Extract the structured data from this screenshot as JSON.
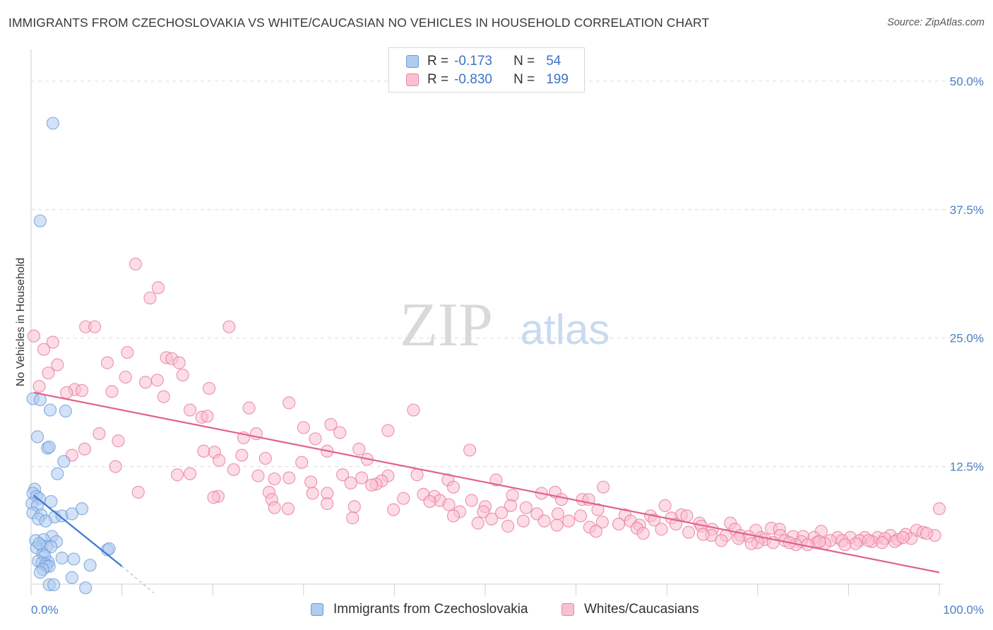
{
  "title": "IMMIGRANTS FROM CZECHOSLOVAKIA VS WHITE/CAUCASIAN NO VEHICLES IN HOUSEHOLD CORRELATION CHART",
  "source": "Source: ZipAtlas.com",
  "watermark": {
    "zip": "ZIP",
    "atlas": "atlas"
  },
  "legend": {
    "rows": [
      {
        "r_label": "R =",
        "r_value": "-0.173",
        "n_label": "N =",
        "n_value": "54",
        "color": "#aecbf0",
        "border": "#6a9bd8"
      },
      {
        "r_label": "R =",
        "r_value": "-0.830",
        "n_label": "N =",
        "n_value": "199",
        "color": "#f9c0d0",
        "border": "#e88aa6"
      }
    ]
  },
  "bottom_legend": {
    "series1": "Immigrants from Czechoslovakia",
    "series2": "Whites/Caucasians"
  },
  "chart_data": {
    "type": "scatter",
    "title": "IMMIGRANTS FROM CZECHOSLOVAKIA VS WHITE/CAUCASIAN NO VEHICLES IN HOUSEHOLD CORRELATION CHART",
    "xlabel": "",
    "ylabel": "No Vehicles in Household",
    "xlim": [
      0,
      100
    ],
    "ylim": [
      0,
      52.5
    ],
    "x_tick_labels": [
      "0.0%",
      "100.0%"
    ],
    "y_ticks": [
      12.5,
      25.0,
      37.5,
      50.0
    ],
    "y_tick_labels": [
      "12.5%",
      "25.0%",
      "37.5%",
      "50.0%"
    ],
    "grid": "horizontal dashed",
    "legend_position": "top-center",
    "series": [
      {
        "name": "Immigrants from Czechoslovakia",
        "color": "#6a9bd8",
        "fill": "#aecbf0",
        "trend": {
          "x": [
            0.3,
            10.0
          ],
          "y": [
            9.7,
            2.8
          ],
          "dashed_to": [
            13.5,
            0.2
          ]
        },
        "points": [
          [
            2.4,
            45.9
          ],
          [
            1.0,
            36.4
          ],
          [
            0.2,
            19.1
          ],
          [
            1.0,
            19.0
          ],
          [
            2.1,
            18.0
          ],
          [
            3.8,
            17.9
          ],
          [
            0.7,
            15.4
          ],
          [
            1.8,
            14.3
          ],
          [
            2.0,
            14.4
          ],
          [
            3.6,
            13.0
          ],
          [
            2.9,
            11.8
          ],
          [
            0.4,
            10.3
          ],
          [
            0.2,
            9.9
          ],
          [
            0.6,
            9.6
          ],
          [
            0.9,
            9.4
          ],
          [
            2.2,
            9.1
          ],
          [
            0.1,
            8.9
          ],
          [
            0.7,
            8.7
          ],
          [
            5.6,
            8.4
          ],
          [
            0.2,
            8.0
          ],
          [
            1.1,
            7.8
          ],
          [
            2.6,
            7.6
          ],
          [
            3.4,
            7.7
          ],
          [
            4.5,
            7.9
          ],
          [
            0.8,
            7.4
          ],
          [
            1.6,
            7.2
          ],
          [
            2.3,
            5.7
          ],
          [
            0.5,
            5.3
          ],
          [
            1.4,
            5.4
          ],
          [
            2.8,
            5.2
          ],
          [
            1.2,
            4.8
          ],
          [
            1.7,
            4.7
          ],
          [
            2.2,
            4.7
          ],
          [
            0.6,
            4.6
          ],
          [
            8.4,
            4.4
          ],
          [
            8.6,
            4.5
          ],
          [
            1.3,
            4.0
          ],
          [
            1.5,
            3.8
          ],
          [
            3.4,
            3.6
          ],
          [
            4.7,
            3.5
          ],
          [
            0.8,
            3.3
          ],
          [
            1.9,
            3.2
          ],
          [
            1.2,
            3.1
          ],
          [
            1.6,
            3.0
          ],
          [
            6.5,
            2.9
          ],
          [
            1.7,
            2.8
          ],
          [
            2.0,
            2.8
          ],
          [
            1.3,
            2.5
          ],
          [
            1.0,
            2.2
          ],
          [
            4.5,
            1.7
          ],
          [
            2.0,
            1.0
          ],
          [
            2.5,
            1.0
          ],
          [
            6.0,
            0.7
          ],
          [
            0.9,
            5.0
          ]
        ]
      },
      {
        "name": "Whites/Caucasians",
        "color": "#e8789a",
        "fill": "#f9c0d0",
        "trend": {
          "x": [
            0.3,
            100.0
          ],
          "y": [
            19.7,
            2.2
          ]
        },
        "points": [
          [
            11.5,
            32.2
          ],
          [
            14.0,
            29.9
          ],
          [
            13.1,
            28.9
          ],
          [
            21.8,
            26.1
          ],
          [
            6.0,
            26.1
          ],
          [
            7.0,
            26.1
          ],
          [
            0.3,
            25.2
          ],
          [
            2.4,
            24.6
          ],
          [
            1.4,
            23.9
          ],
          [
            10.6,
            23.6
          ],
          [
            14.9,
            23.1
          ],
          [
            15.5,
            23.0
          ],
          [
            16.3,
            22.6
          ],
          [
            2.9,
            22.4
          ],
          [
            8.4,
            22.6
          ],
          [
            1.9,
            21.6
          ],
          [
            10.4,
            21.2
          ],
          [
            16.7,
            21.4
          ],
          [
            12.6,
            20.7
          ],
          [
            13.9,
            20.9
          ],
          [
            19.6,
            20.1
          ],
          [
            0.9,
            20.3
          ],
          [
            4.8,
            20.0
          ],
          [
            3.9,
            19.7
          ],
          [
            5.6,
            19.9
          ],
          [
            8.9,
            19.8
          ],
          [
            14.6,
            19.3
          ],
          [
            28.4,
            18.7
          ],
          [
            17.5,
            18.0
          ],
          [
            24.0,
            18.2
          ],
          [
            42.1,
            18.0
          ],
          [
            18.8,
            17.3
          ],
          [
            19.4,
            17.4
          ],
          [
            33.0,
            16.6
          ],
          [
            30.0,
            16.3
          ],
          [
            39.3,
            16.0
          ],
          [
            34.0,
            15.8
          ],
          [
            7.5,
            15.7
          ],
          [
            24.8,
            15.7
          ],
          [
            23.4,
            15.3
          ],
          [
            31.3,
            15.2
          ],
          [
            9.6,
            15.0
          ],
          [
            5.9,
            14.2
          ],
          [
            19.0,
            14.0
          ],
          [
            20.2,
            13.9
          ],
          [
            36.1,
            14.2
          ],
          [
            48.3,
            14.1
          ],
          [
            32.6,
            14.0
          ],
          [
            4.5,
            13.6
          ],
          [
            23.2,
            13.6
          ],
          [
            25.8,
            13.3
          ],
          [
            20.7,
            13.1
          ],
          [
            29.8,
            12.9
          ],
          [
            37.0,
            13.2
          ],
          [
            9.3,
            12.5
          ],
          [
            22.3,
            12.2
          ],
          [
            16.1,
            11.7
          ],
          [
            17.5,
            11.8
          ],
          [
            25.0,
            11.6
          ],
          [
            34.3,
            11.7
          ],
          [
            39.3,
            11.6
          ],
          [
            42.5,
            11.7
          ],
          [
            26.8,
            11.3
          ],
          [
            28.4,
            11.4
          ],
          [
            30.8,
            11.0
          ],
          [
            36.4,
            11.4
          ],
          [
            38.6,
            11.1
          ],
          [
            45.9,
            11.2
          ],
          [
            51.2,
            11.2
          ],
          [
            35.2,
            10.9
          ],
          [
            38.0,
            10.8
          ],
          [
            46.5,
            10.5
          ],
          [
            37.5,
            10.7
          ],
          [
            63.0,
            10.5
          ],
          [
            57.7,
            10.0
          ],
          [
            26.2,
            10.0
          ],
          [
            31.0,
            9.9
          ],
          [
            32.6,
            9.9
          ],
          [
            11.8,
            10.0
          ],
          [
            43.2,
            9.8
          ],
          [
            44.4,
            9.6
          ],
          [
            53.0,
            9.7
          ],
          [
            56.2,
            9.9
          ],
          [
            20.6,
            9.6
          ],
          [
            26.5,
            9.3
          ],
          [
            41.0,
            9.4
          ],
          [
            45.0,
            9.2
          ],
          [
            48.5,
            9.2
          ],
          [
            58.4,
            9.3
          ],
          [
            60.7,
            9.3
          ],
          [
            61.4,
            9.3
          ],
          [
            20.1,
            9.5
          ],
          [
            43.9,
            9.1
          ],
          [
            26.8,
            8.5
          ],
          [
            32.6,
            8.9
          ],
          [
            35.6,
            8.6
          ],
          [
            39.9,
            8.3
          ],
          [
            46.0,
            8.8
          ],
          [
            50.0,
            8.6
          ],
          [
            52.8,
            8.7
          ],
          [
            54.5,
            8.5
          ],
          [
            62.4,
            8.3
          ],
          [
            69.8,
            8.7
          ],
          [
            100.0,
            8.4
          ],
          [
            28.3,
            8.4
          ],
          [
            47.2,
            8.1
          ],
          [
            49.8,
            8.1
          ],
          [
            51.8,
            8.0
          ],
          [
            55.7,
            7.9
          ],
          [
            58.0,
            7.9
          ],
          [
            60.5,
            7.7
          ],
          [
            65.4,
            7.8
          ],
          [
            68.2,
            7.7
          ],
          [
            71.6,
            7.8
          ],
          [
            72.2,
            7.7
          ],
          [
            70.5,
            7.5
          ],
          [
            35.4,
            7.5
          ],
          [
            46.5,
            7.7
          ],
          [
            50.7,
            7.4
          ],
          [
            54.2,
            7.2
          ],
          [
            56.5,
            7.2
          ],
          [
            59.2,
            7.2
          ],
          [
            62.9,
            7.1
          ],
          [
            66.0,
            7.2
          ],
          [
            68.6,
            7.3
          ],
          [
            73.6,
            7.0
          ],
          [
            77.0,
            7.0
          ],
          [
            49.2,
            7.0
          ],
          [
            64.7,
            6.9
          ],
          [
            67.0,
            6.8
          ],
          [
            71.0,
            6.9
          ],
          [
            73.8,
            6.7
          ],
          [
            75.0,
            6.4
          ],
          [
            52.5,
            6.7
          ],
          [
            57.9,
            6.8
          ],
          [
            61.5,
            6.6
          ],
          [
            66.7,
            6.5
          ],
          [
            69.4,
            6.4
          ],
          [
            72.4,
            6.1
          ],
          [
            77.5,
            6.4
          ],
          [
            79.8,
            6.3
          ],
          [
            81.5,
            6.5
          ],
          [
            82.4,
            6.4
          ],
          [
            87.0,
            6.2
          ],
          [
            97.5,
            6.3
          ],
          [
            98.2,
            6.1
          ],
          [
            62.2,
            6.2
          ],
          [
            67.4,
            6.0
          ],
          [
            74.9,
            5.8
          ],
          [
            76.5,
            5.8
          ],
          [
            78.1,
            5.8
          ],
          [
            79.0,
            5.7
          ],
          [
            80.4,
            5.6
          ],
          [
            82.5,
            5.8
          ],
          [
            83.9,
            5.7
          ],
          [
            85.0,
            5.7
          ],
          [
            86.2,
            5.6
          ],
          [
            88.8,
            5.6
          ],
          [
            90.2,
            5.6
          ],
          [
            91.8,
            5.6
          ],
          [
            93.2,
            5.6
          ],
          [
            94.6,
            5.8
          ],
          [
            96.3,
            5.9
          ],
          [
            99.5,
            5.8
          ],
          [
            74.0,
            5.9
          ],
          [
            77.9,
            5.5
          ],
          [
            80.8,
            5.4
          ],
          [
            83.0,
            5.3
          ],
          [
            84.8,
            5.2
          ],
          [
            86.5,
            5.1
          ],
          [
            88.0,
            5.3
          ],
          [
            89.3,
            5.3
          ],
          [
            91.2,
            5.3
          ],
          [
            92.6,
            5.2
          ],
          [
            94.0,
            5.5
          ],
          [
            95.4,
            5.4
          ],
          [
            96.9,
            5.5
          ],
          [
            81.7,
            5.1
          ],
          [
            84.2,
            4.9
          ],
          [
            87.4,
            5.0
          ],
          [
            90.8,
            5.0
          ],
          [
            93.7,
            5.1
          ],
          [
            95.1,
            5.2
          ],
          [
            98.6,
            6.0
          ],
          [
            76.0,
            5.3
          ],
          [
            80.0,
            5.1
          ],
          [
            85.5,
            4.9
          ],
          [
            89.6,
            4.9
          ],
          [
            92.2,
            5.3
          ],
          [
            96.0,
            5.6
          ],
          [
            79.3,
            5.0
          ],
          [
            83.5,
            5.1
          ],
          [
            86.8,
            5.2
          ]
        ]
      }
    ]
  }
}
